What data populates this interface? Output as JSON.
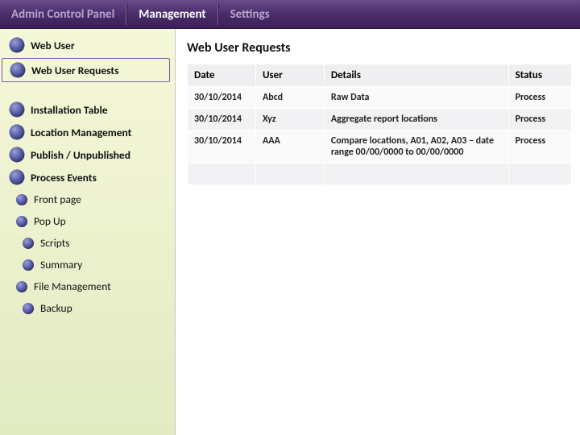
{
  "topbar": {
    "items": [
      {
        "label": "Admin Control Panel"
      },
      {
        "label": "Management"
      },
      {
        "label": "Settings"
      }
    ]
  },
  "sidebar": {
    "items": [
      {
        "label": "Web User"
      },
      {
        "label": "Web User Requests"
      },
      {
        "label": "Installation Table"
      },
      {
        "label": "Location Management"
      },
      {
        "label": "Publish / Unpublished"
      },
      {
        "label": "Process Events"
      },
      {
        "label": "Front page"
      },
      {
        "label": "Pop Up"
      },
      {
        "label": "Scripts"
      },
      {
        "label": "Summary"
      },
      {
        "label": "File Management"
      },
      {
        "label": "Backup"
      }
    ]
  },
  "page": {
    "title": "Web User Requests"
  },
  "table": {
    "headers": {
      "date": "Date",
      "user": "User",
      "details": "Details",
      "status": "Status"
    },
    "rows": [
      {
        "date": "30/10/2014",
        "user": "Abcd",
        "details": "Raw Data",
        "status": "Process"
      },
      {
        "date": "30/10/2014",
        "user": "Xyz",
        "details": "Aggregate report locations",
        "status": "Process"
      },
      {
        "date": "30/10/2014",
        "user": "AAA",
        "details": "Compare locations, A01, A02, A03 – date range 00/00/0000 to 00/00/0000",
        "status": "Process"
      }
    ]
  },
  "colors": {
    "topbar_gradient_top": "#6a4a8a",
    "topbar_gradient_mid": "#4a2d6a",
    "topbar_gradient_bot": "#3a2058",
    "sidebar_bg_top": "#f5f8d8",
    "sidebar_bg_bot": "#e2ebc2",
    "accent_border": "#7a5ba0",
    "bullet_light": "#9aa0d8",
    "bullet_dark": "#2a2f6a",
    "table_header_bg": "#efeff1"
  }
}
